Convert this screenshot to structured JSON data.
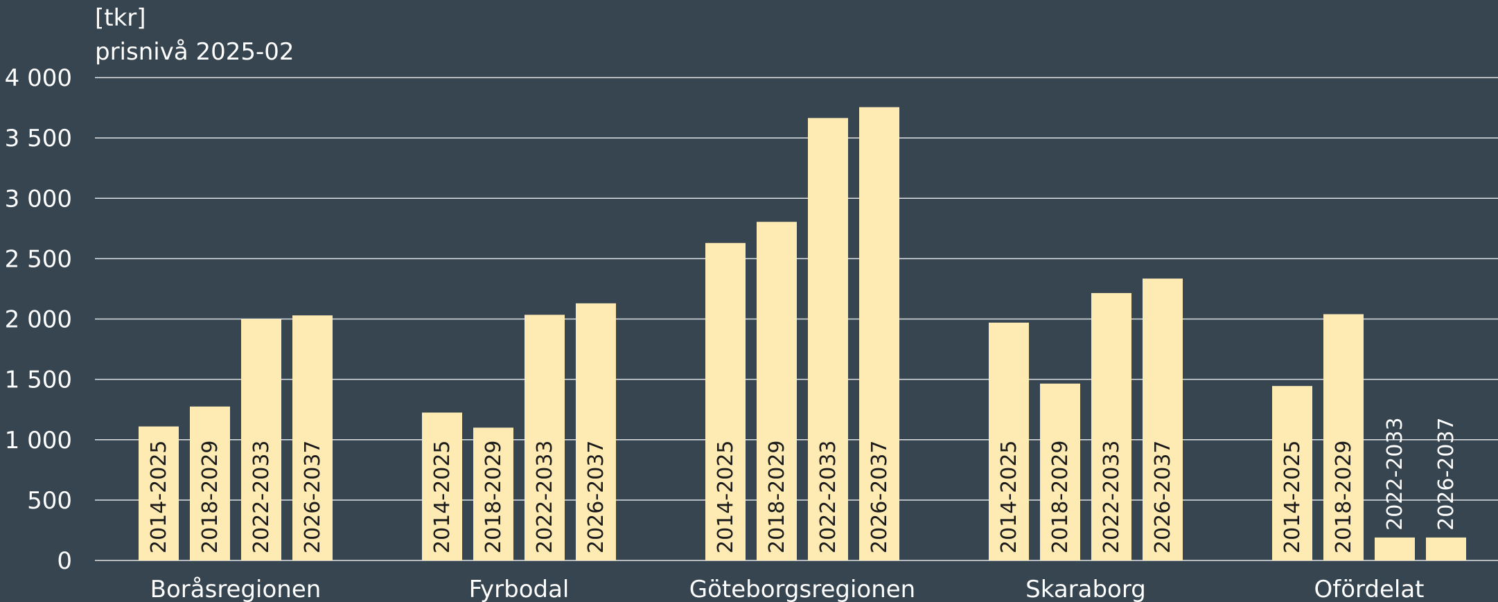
{
  "chart_data": {
    "type": "bar",
    "unit_label": "[tkr]",
    "subtitle": "prisnivå 2025-02",
    "xlabel": "",
    "ylabel": "",
    "ylim": [
      0,
      4000
    ],
    "yticks": [
      {
        "value": 0,
        "label": "0"
      },
      {
        "value": 500,
        "label": "500"
      },
      {
        "value": 1000,
        "label": "1 000"
      },
      {
        "value": 1500,
        "label": "1 500"
      },
      {
        "value": 2000,
        "label": "2 000"
      },
      {
        "value": 2500,
        "label": "2 500"
      },
      {
        "value": 3000,
        "label": "3 000"
      },
      {
        "value": 3500,
        "label": "3 500"
      },
      {
        "value": 4000,
        "label": "4 000"
      }
    ],
    "grid": true,
    "legend": "none",
    "categories": [
      "Boråsregionen",
      "Fyrbodal",
      "Göteborgsregionen",
      "Skaraborg",
      "Ofördelat"
    ],
    "series": [
      {
        "period": "2014-2025",
        "values": [
          1110,
          1225,
          2630,
          1970,
          1445
        ]
      },
      {
        "period": "2018-2029",
        "values": [
          1275,
          1100,
          2805,
          1465,
          2040
        ]
      },
      {
        "period": "2022-2033",
        "values": [
          2000,
          2035,
          3665,
          2215,
          190
        ]
      },
      {
        "period": "2026-2037",
        "values": [
          2030,
          2130,
          3755,
          2335,
          190
        ]
      }
    ],
    "colors": {
      "background": "#36454f",
      "bar": "#feebb3",
      "grid": "#e0e4e6",
      "text": "#ffffff",
      "bar_label": "#1a1a1a"
    }
  }
}
